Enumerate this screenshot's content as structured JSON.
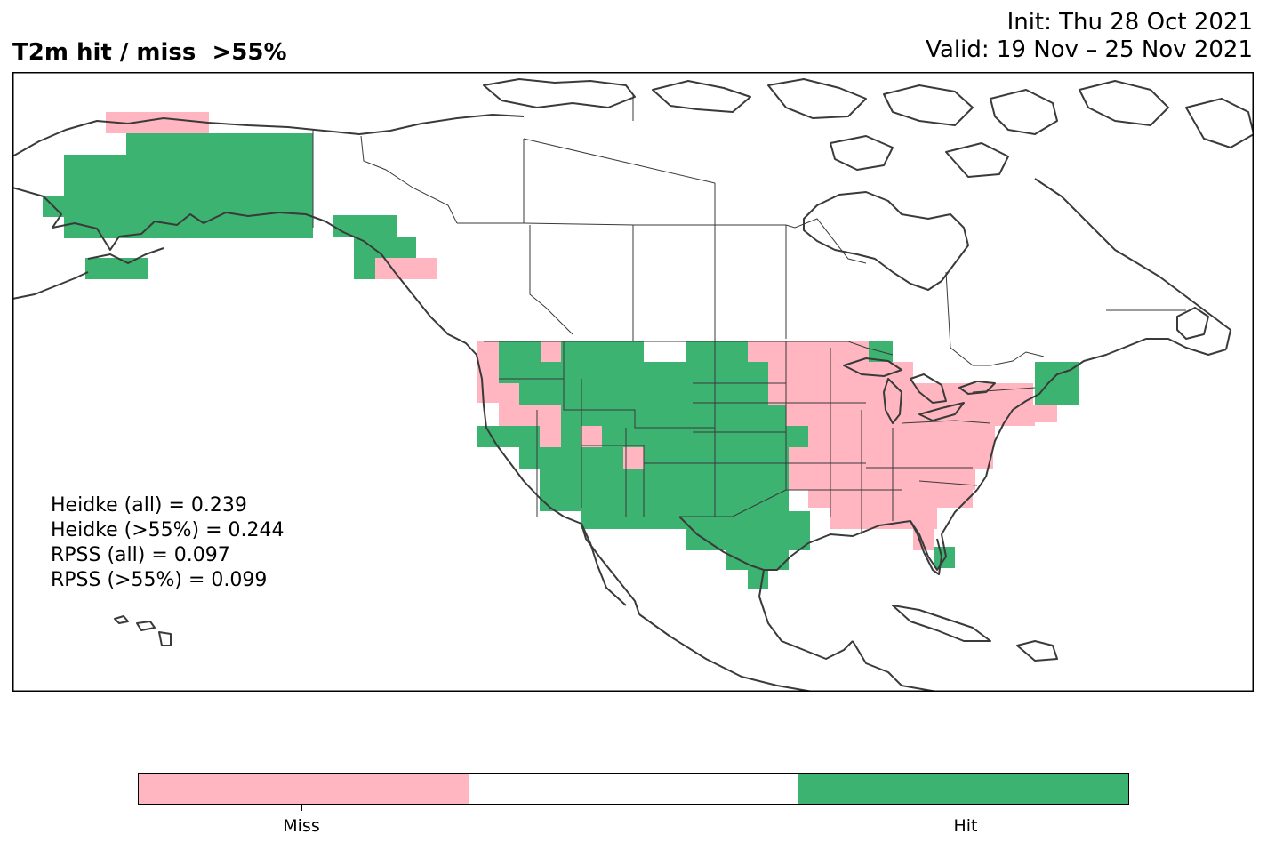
{
  "title": "T2m hit / miss  >55%",
  "init_text": "Init: Thu 28 Oct 2021",
  "valid_text": "Valid: 19 Nov – 25 Nov 2021",
  "stats": [
    "Heidke (all) = 0.239",
    "Heidke (>55%) = 0.244",
    "RPSS (all) = 0.097",
    "RPSS (>55%) = 0.099"
  ],
  "colorbar": {
    "colors": {
      "miss": "#ffb6c1",
      "none": "#ffffff",
      "hit": "#3cb371"
    },
    "labels": {
      "miss": "Miss",
      "hit": "Hit"
    }
  },
  "map_colors": {
    "coast": "#3a3a3a",
    "border": "#3a3a3a"
  }
}
